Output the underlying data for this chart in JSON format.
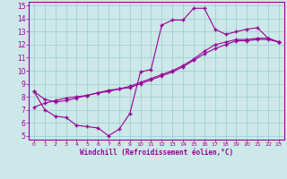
{
  "xlabel": "Windchill (Refroidissement éolien,°C)",
  "bg_color": "#cce8e8",
  "line_color": "#990099",
  "grid_color": "#99cccc",
  "xlim": [
    -0.5,
    23.5
  ],
  "ylim": [
    4.7,
    15.3
  ],
  "xticks": [
    0,
    1,
    2,
    3,
    4,
    5,
    6,
    7,
    8,
    9,
    10,
    11,
    12,
    13,
    14,
    15,
    16,
    17,
    18,
    19,
    20,
    21,
    22,
    23
  ],
  "yticks": [
    5,
    6,
    7,
    8,
    9,
    10,
    11,
    12,
    13,
    14,
    15
  ],
  "curve1_x": [
    0,
    1,
    2,
    3,
    4,
    5,
    6,
    7,
    8,
    9,
    10,
    11,
    12,
    13,
    14,
    15,
    16,
    17,
    18,
    19,
    20,
    21,
    22,
    23
  ],
  "curve1_y": [
    8.4,
    7.0,
    6.5,
    6.4,
    5.8,
    5.7,
    5.6,
    5.0,
    5.5,
    6.7,
    9.9,
    10.1,
    13.5,
    13.9,
    13.9,
    14.8,
    14.8,
    13.2,
    12.8,
    13.0,
    13.2,
    13.3,
    12.5,
    12.2
  ],
  "curve2_x": [
    0,
    1,
    2,
    3,
    4,
    5,
    6,
    7,
    8,
    9,
    10,
    11,
    12,
    13,
    14,
    15,
    16,
    17,
    18,
    19,
    20,
    21,
    22,
    23
  ],
  "curve2_y": [
    7.2,
    7.5,
    7.7,
    7.9,
    8.0,
    8.1,
    8.3,
    8.4,
    8.6,
    8.7,
    9.0,
    9.3,
    9.6,
    9.9,
    10.3,
    10.8,
    11.3,
    11.7,
    12.0,
    12.3,
    12.3,
    12.4,
    12.4,
    12.2
  ],
  "curve3_x": [
    0,
    1,
    2,
    3,
    4,
    5,
    6,
    7,
    8,
    9,
    10,
    11,
    12,
    13,
    14,
    15,
    16,
    17,
    18,
    19,
    20,
    21,
    22,
    23
  ],
  "curve3_y": [
    8.4,
    7.8,
    7.6,
    7.7,
    7.9,
    8.1,
    8.3,
    8.5,
    8.6,
    8.8,
    9.1,
    9.4,
    9.7,
    10.0,
    10.4,
    10.9,
    11.5,
    12.0,
    12.2,
    12.4,
    12.4,
    12.5,
    12.5,
    12.2
  ]
}
